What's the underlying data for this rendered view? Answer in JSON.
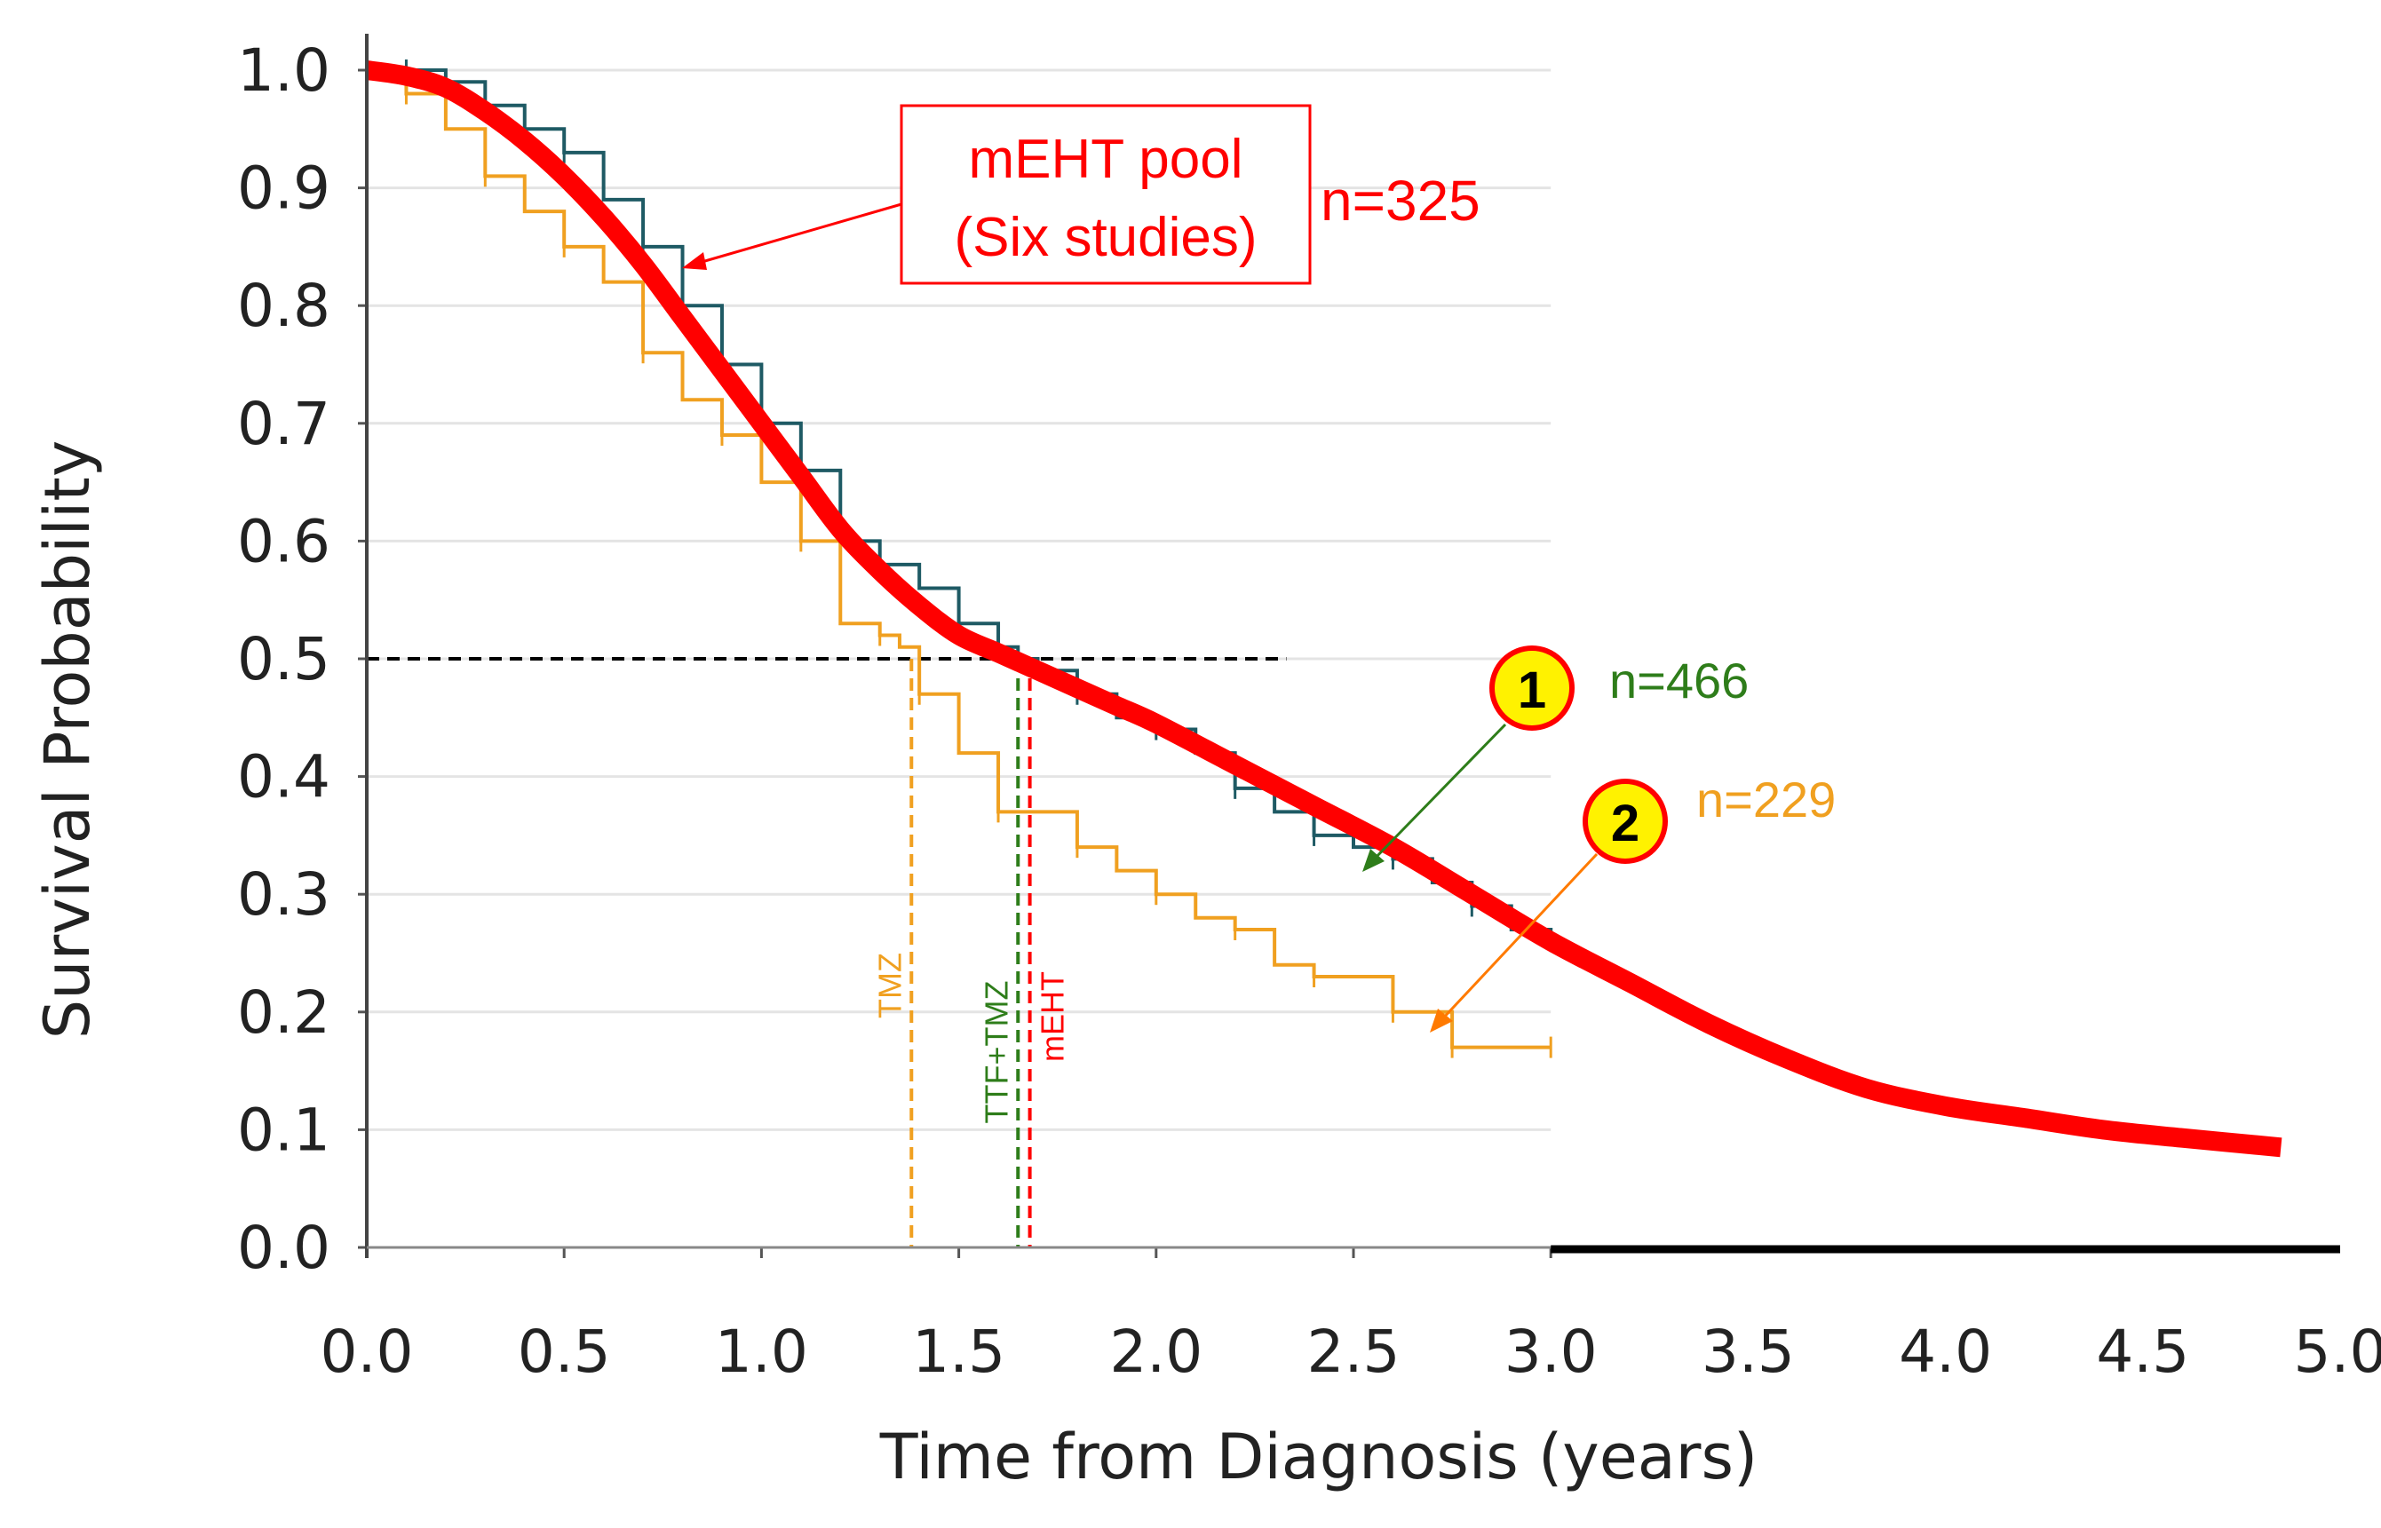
{
  "chart_data": {
    "type": "line",
    "xlabel": "Time from Diagnosis  (years)",
    "ylabel": "Survival Probability",
    "xlim": [
      0,
      5
    ],
    "ylim": [
      0,
      1
    ],
    "x_ticks": [
      "0.0",
      "0.5",
      "1.0",
      "1.5",
      "2.0",
      "2.5",
      "3.0",
      "3.5",
      "4.0",
      "4.5",
      "5.0"
    ],
    "y_ticks": [
      "0.0",
      "0.1",
      "0.2",
      "0.3",
      "0.4",
      "0.5",
      "0.6",
      "0.7",
      "0.8",
      "0.9",
      "1.0"
    ],
    "grid": "horizontal",
    "series": [
      {
        "label_n": "n=325",
        "color": "#ff0000",
        "style": "smooth-thick",
        "x": [
          0,
          0.1,
          0.2,
          0.3,
          0.4,
          0.5,
          0.6,
          0.7,
          0.8,
          0.9,
          1.0,
          1.1,
          1.2,
          1.3,
          1.4,
          1.5,
          1.6,
          1.7,
          1.8,
          1.9,
          2.0,
          2.2,
          2.4,
          2.6,
          2.8,
          3.0,
          3.2,
          3.4,
          3.6,
          3.8,
          4.0,
          4.2,
          4.4,
          4.6,
          4.85
        ],
        "y": [
          1.0,
          0.995,
          0.985,
          0.965,
          0.94,
          0.91,
          0.875,
          0.835,
          0.79,
          0.745,
          0.7,
          0.655,
          0.61,
          0.575,
          0.545,
          0.52,
          0.505,
          0.49,
          0.475,
          0.46,
          0.445,
          0.41,
          0.375,
          0.34,
          0.3,
          0.26,
          0.225,
          0.19,
          0.16,
          0.135,
          0.12,
          0.11,
          0.1,
          0.093,
          0.085
        ]
      },
      {
        "label_n": "n=466",
        "color": "#1e5a64",
        "style": "step",
        "x": [
          0,
          0.1,
          0.2,
          0.3,
          0.4,
          0.5,
          0.6,
          0.7,
          0.8,
          0.9,
          1.0,
          1.1,
          1.2,
          1.3,
          1.4,
          1.5,
          1.6,
          1.65,
          1.7,
          1.8,
          1.9,
          2.0,
          2.1,
          2.2,
          2.3,
          2.4,
          2.5,
          2.6,
          2.7,
          2.8,
          2.9,
          3.0
        ],
        "y": [
          1.0,
          1.0,
          0.99,
          0.97,
          0.95,
          0.93,
          0.89,
          0.85,
          0.8,
          0.75,
          0.7,
          0.66,
          0.6,
          0.58,
          0.56,
          0.53,
          0.51,
          0.5,
          0.49,
          0.47,
          0.45,
          0.44,
          0.42,
          0.39,
          0.37,
          0.35,
          0.34,
          0.33,
          0.31,
          0.29,
          0.27,
          0.26
        ]
      },
      {
        "label_n": "n=229",
        "color": "#f0a020",
        "style": "step",
        "x": [
          0,
          0.1,
          0.2,
          0.3,
          0.4,
          0.5,
          0.6,
          0.7,
          0.8,
          0.9,
          1.0,
          1.1,
          1.2,
          1.3,
          1.35,
          1.4,
          1.5,
          1.6,
          1.7,
          1.8,
          1.9,
          2.0,
          2.1,
          2.2,
          2.3,
          2.4,
          2.5,
          2.6,
          2.7,
          2.75,
          2.8,
          3.0
        ],
        "y": [
          1.0,
          0.98,
          0.95,
          0.91,
          0.88,
          0.85,
          0.82,
          0.76,
          0.72,
          0.69,
          0.65,
          0.6,
          0.53,
          0.52,
          0.51,
          0.47,
          0.42,
          0.37,
          0.37,
          0.34,
          0.32,
          0.3,
          0.28,
          0.27,
          0.24,
          0.23,
          0.23,
          0.2,
          0.2,
          0.17,
          0.17,
          0.17
        ]
      }
    ],
    "reference_line": {
      "y": 0.5,
      "x_end": 2.33,
      "color": "#000000"
    },
    "medians": [
      {
        "label": "TMZ",
        "x": 1.38,
        "color": "#f0a020"
      },
      {
        "label": "TTF+TMZ",
        "x": 1.65,
        "color": "#2e7d1a"
      },
      {
        "label": "mEHT",
        "x": 1.68,
        "color": "#ff0000"
      }
    ],
    "annotations": {
      "box_line1": "mEHT pool",
      "box_line2": "(Six studies)",
      "n_red": "n=325",
      "circle1": "1",
      "n_green": "n=466",
      "n_green_color": "#2e7d1a",
      "circle2": "2",
      "n_orange": "n=229",
      "n_orange_color": "#f0a020"
    }
  }
}
